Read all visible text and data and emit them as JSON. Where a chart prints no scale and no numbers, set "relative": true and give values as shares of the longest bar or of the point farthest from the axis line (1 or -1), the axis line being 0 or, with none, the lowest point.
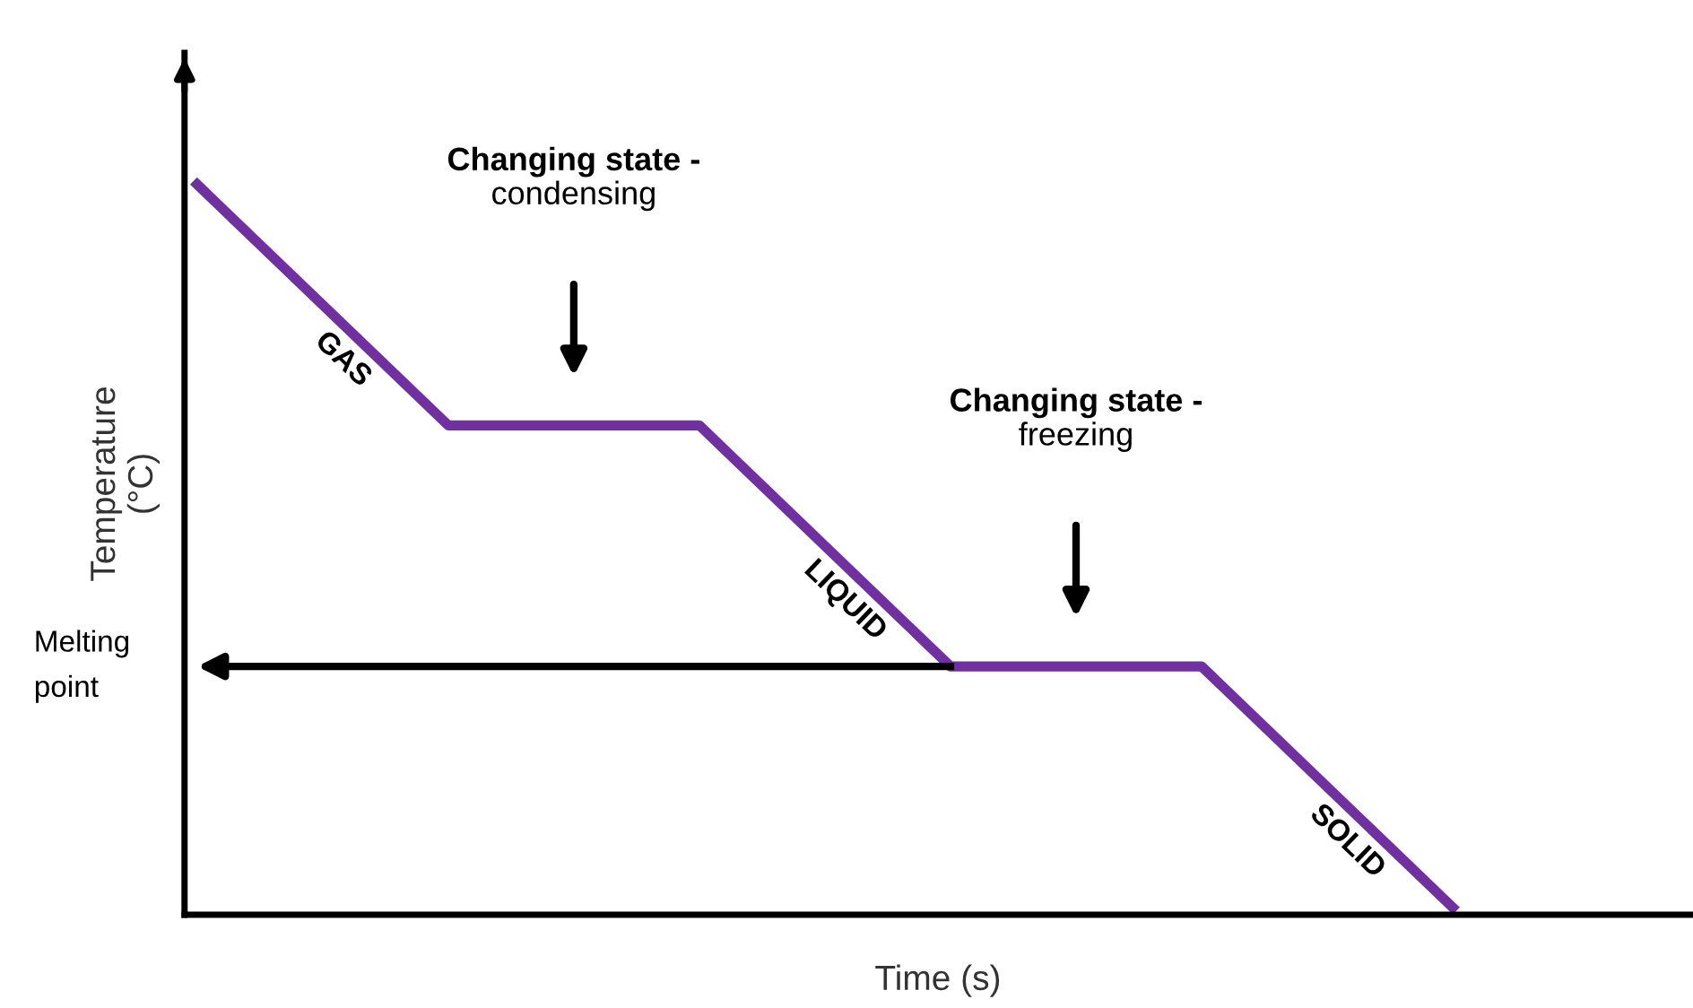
{
  "chart_data": {
    "type": "line",
    "relative": true,
    "xlabel": "Time (s)",
    "ylabel": "Temperature\n(°C)",
    "categories": [
      null,
      null,
      null,
      null,
      null,
      null
    ],
    "series": [
      {
        "color": "#7030a0",
        "values": [
          1,
          0.67,
          0.67,
          0.34,
          0.34,
          0.01
        ]
      }
    ],
    "annotations": [
      "GAS",
      "Changing state -\ncondensing",
      "LIQUID",
      "Changing state -\nfreezing",
      "SOLID"
    ],
    "ref_lines": [
      {
        "axis": "y",
        "value": 0.34,
        "label": "Melting\npoint",
        "color": "#000000"
      }
    ],
    "legend": false,
    "marker": "none",
    "line_style": "solid"
  }
}
